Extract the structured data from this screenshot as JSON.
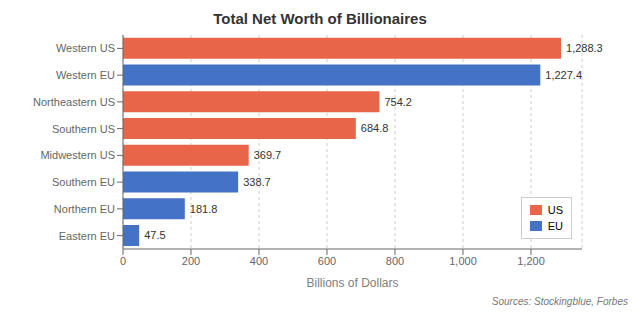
{
  "chart_data": {
    "type": "bar",
    "orientation": "horizontal",
    "title": "Total Net Worth of Billionaires",
    "xlabel": "Billions of Dollars",
    "annotation": "Sources: Stockingblue, Forbes",
    "categories": [
      "Western US",
      "Western EU",
      "Northeastern US",
      "Southern US",
      "Midwestern US",
      "Southern EU",
      "Northern EU",
      "Eastern EU"
    ],
    "values": [
      1288.3,
      1227.4,
      754.2,
      684.8,
      369.7,
      338.7,
      181.8,
      47.5
    ],
    "value_labels": [
      "1,288.3",
      "1,227.4",
      "754.2",
      "684.8",
      "369.7",
      "338.7",
      "181.8",
      "47.5"
    ],
    "data_labels": true,
    "colors": [
      "#E8654A",
      "#4472C4",
      "#E8654A",
      "#E8654A",
      "#E8654A",
      "#4472C4",
      "#4472C4",
      "#4472C4"
    ],
    "legend": "lower right",
    "legend_items": [
      {
        "name": "US",
        "color": "#E8654A"
      },
      {
        "name": "EU",
        "color": "#4472C4"
      }
    ],
    "xlim": [
      0,
      1350
    ],
    "xticks": [
      0,
      200,
      400,
      600,
      800,
      {
        "value": 1000,
        "label": "1,000"
      },
      {
        "value": 1200,
        "label": "1,200"
      }
    ],
    "grid": true
  }
}
